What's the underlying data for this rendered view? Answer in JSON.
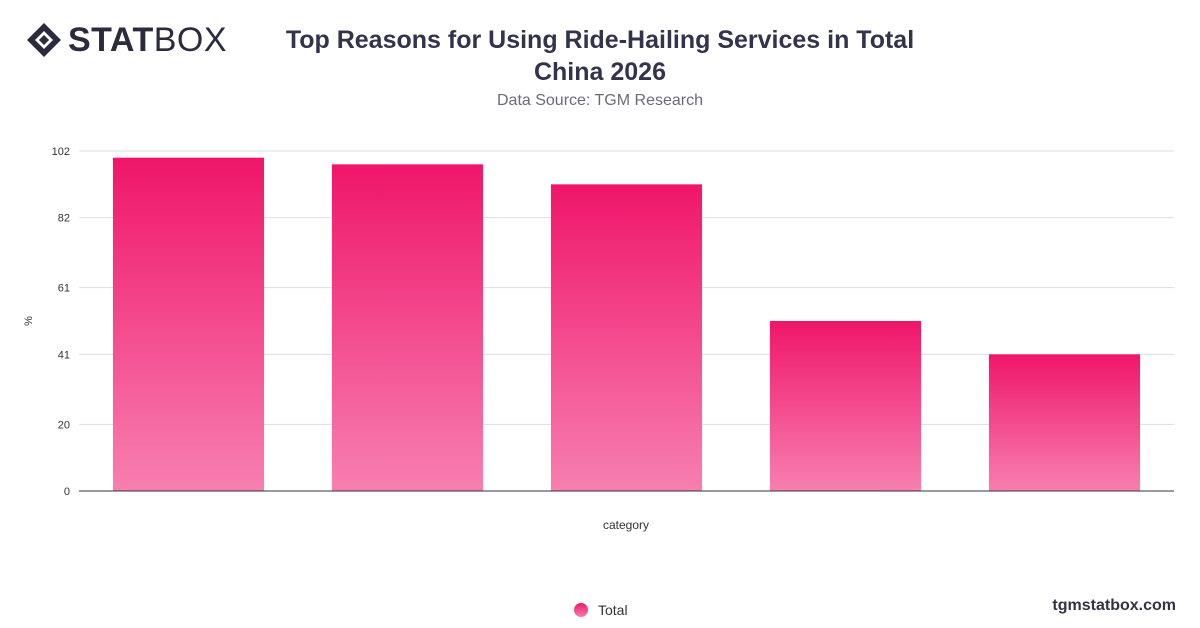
{
  "brand": {
    "logo_bold": "STAT",
    "logo_light": "BOX",
    "footer_url": "tgmstatbox.com"
  },
  "header": {
    "title": "Top Reasons for Using Ride-Hailing Services in Total China 2026",
    "subtitle": "Data Source: TGM Research"
  },
  "colors": {
    "bar_top": "#f0166a",
    "bar_bottom": "#f77fb0",
    "grid": "#dddddd",
    "axis_text": "#333333"
  },
  "chart_data": {
    "type": "bar",
    "categories": [
      "",
      "",
      "",
      "",
      ""
    ],
    "series": [
      {
        "name": "Total",
        "values": [
          100,
          98,
          92,
          51,
          41
        ]
      }
    ],
    "xlabel": "category",
    "ylabel": "%",
    "ylim": [
      0,
      102
    ],
    "yticks": [
      0,
      20,
      41,
      61,
      82,
      102
    ],
    "grid": true,
    "legend_position": "bottom"
  }
}
